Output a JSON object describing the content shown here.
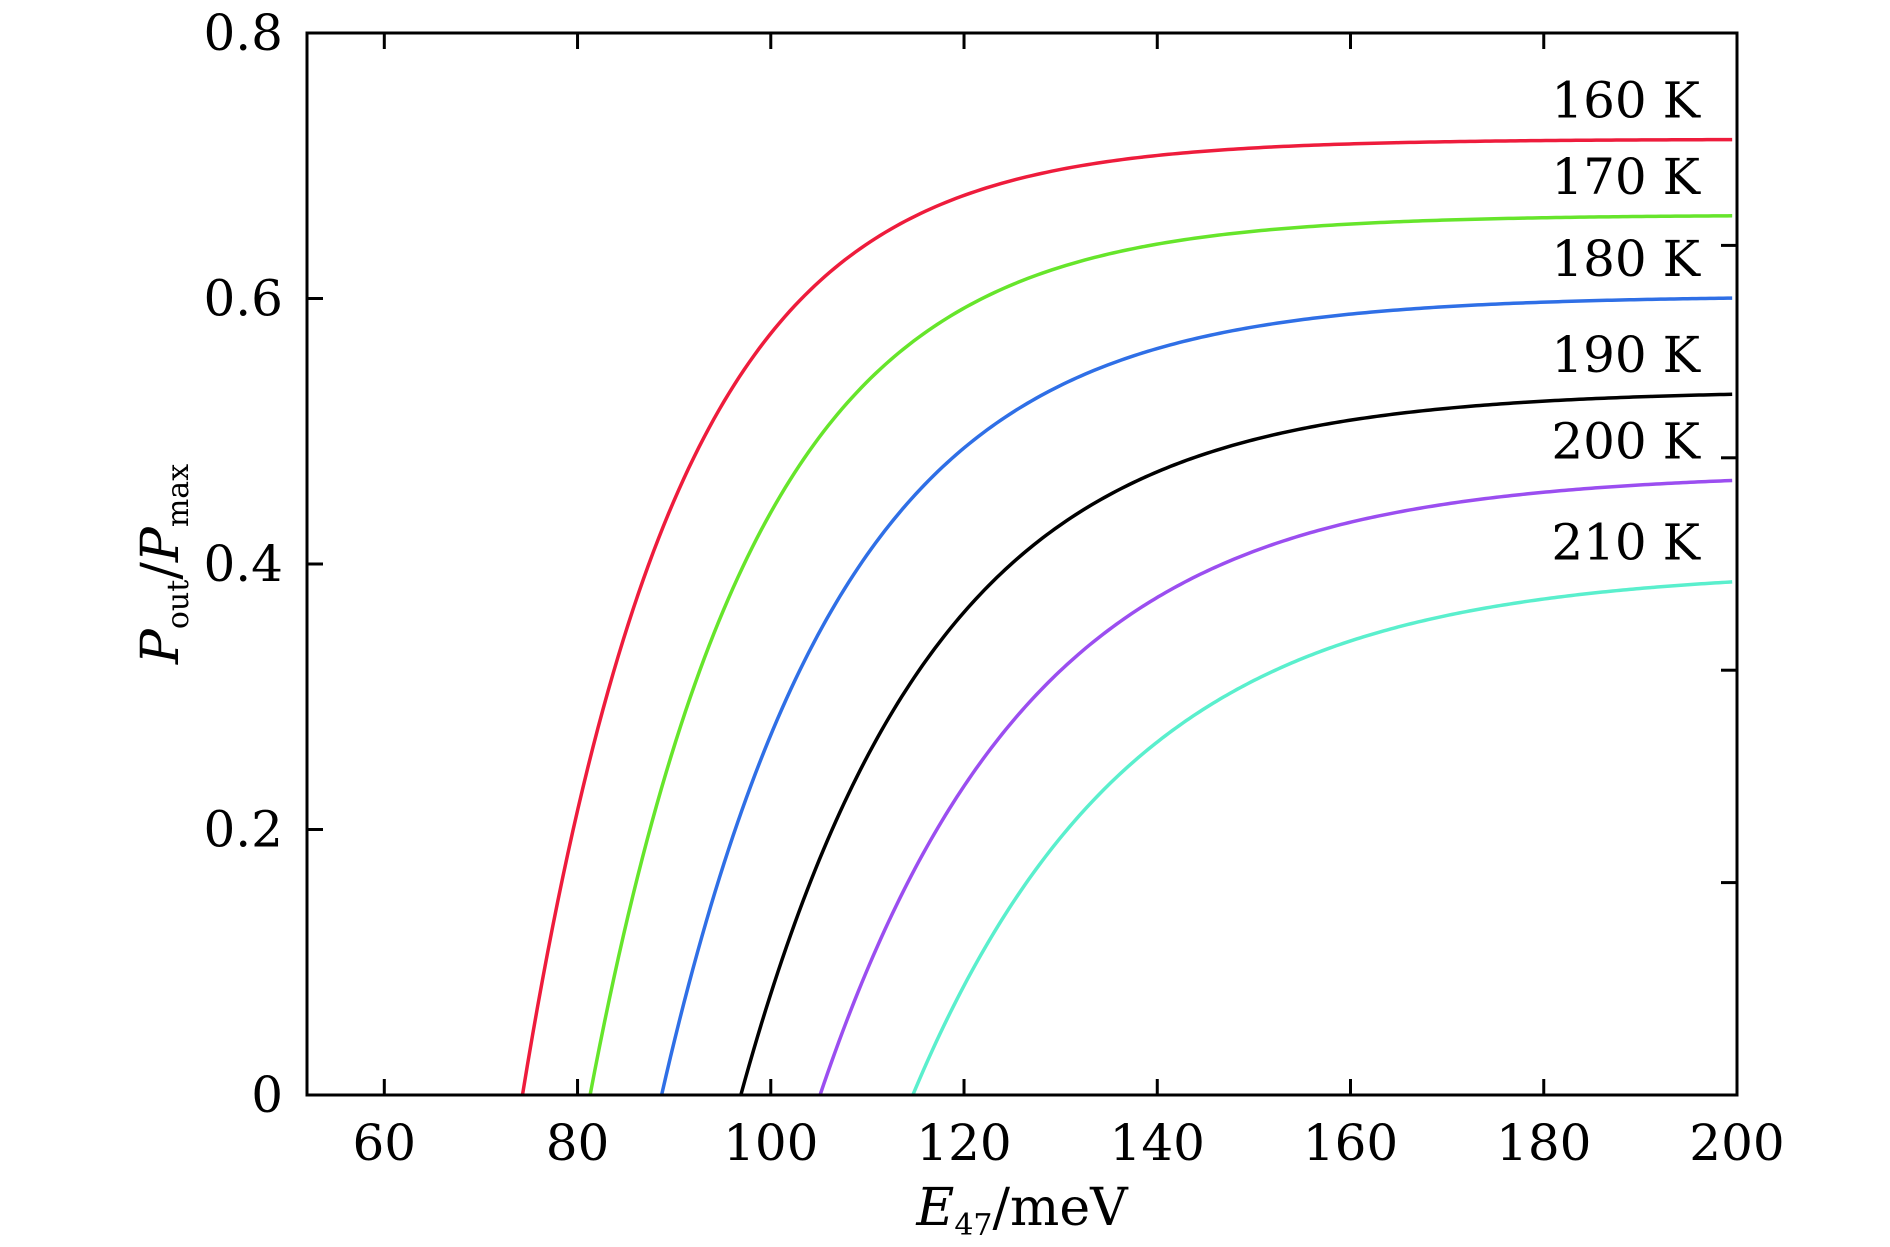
{
  "chart_data": {
    "type": "line",
    "xlabel": {
      "main": "E",
      "sub": "47",
      "suffix": "/meV"
    },
    "ylabel": {
      "p1": "P",
      "sub1": "out",
      "slash": "/",
      "p2": "P",
      "sub2": "max"
    },
    "xlim": [
      52,
      200
    ],
    "ylim": [
      0,
      0.8
    ],
    "xticks": [
      60,
      80,
      100,
      120,
      140,
      160,
      180,
      200
    ],
    "yticks": [
      0,
      0.2,
      0.4,
      0.6,
      0.8
    ],
    "xtick_labels": [
      "60",
      "80",
      "100",
      "120",
      "140",
      "160",
      "180",
      "200"
    ],
    "ytick_labels": [
      "0",
      "0.2",
      "0.4",
      "0.6",
      "0.8"
    ],
    "y_minor_ticks_right": [
      0.16,
      0.32,
      0.48,
      0.64
    ],
    "grid": false,
    "legend": "inline labels at right end",
    "series": [
      {
        "name": "160 K",
        "color": "#ee1c3c",
        "x0": 74.3,
        "ymax": 0.72,
        "k": 0.062
      },
      {
        "name": "170 K",
        "color": "#66e52b",
        "x0": 81.3,
        "ymax": 0.663,
        "k": 0.058
      },
      {
        "name": "180 K",
        "color": "#2f6fe6",
        "x0": 88.7,
        "ymax": 0.602,
        "k": 0.053
      },
      {
        "name": "190 K",
        "color": "#000000",
        "x0": 96.9,
        "ymax": 0.531,
        "k": 0.05
      },
      {
        "name": "200 K",
        "color": "#9b4ef0",
        "x0": 105.1,
        "ymax": 0.469,
        "k": 0.046
      },
      {
        "name": "210 K",
        "color": "#5aefcd",
        "x0": 114.7,
        "ymax": 0.396,
        "k": 0.044
      }
    ]
  }
}
